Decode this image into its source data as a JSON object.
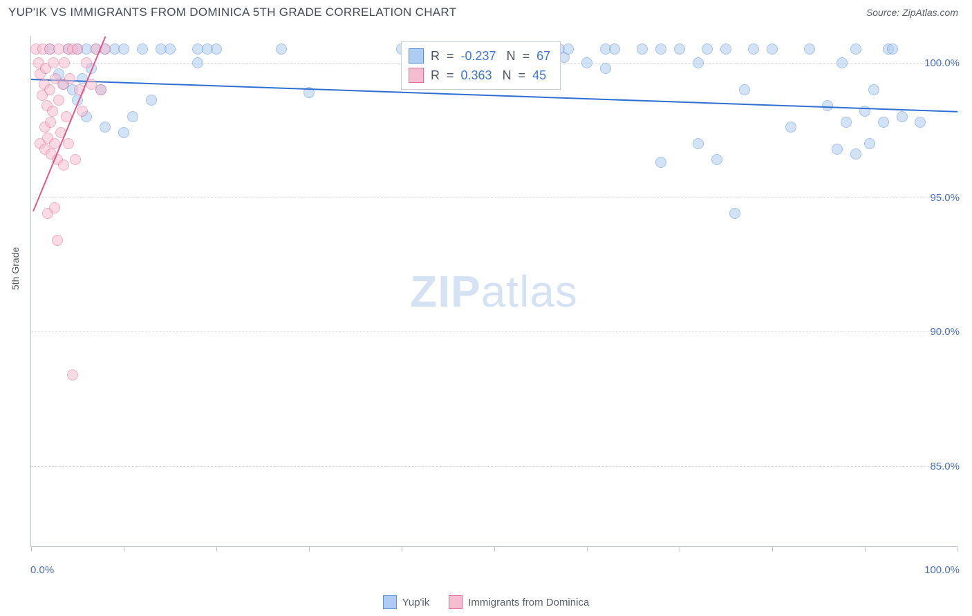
{
  "header": {
    "title": "YUP'IK VS IMMIGRANTS FROM DOMINICA 5TH GRADE CORRELATION CHART",
    "source": "Source: ZipAtlas.com"
  },
  "chart": {
    "type": "scatter",
    "ylabel": "5th Grade",
    "watermark_a": "ZIP",
    "watermark_b": "atlas",
    "xlim": [
      0,
      100
    ],
    "ylim": [
      82,
      101
    ],
    "ytick_labels": [
      "85.0%",
      "90.0%",
      "95.0%",
      "100.0%"
    ],
    "ytick_values": [
      85,
      90,
      95,
      100
    ],
    "xtick_values": [
      0,
      10,
      20,
      30,
      40,
      50,
      60,
      70,
      80,
      90,
      100
    ],
    "xtick_left_label": "0.0%",
    "xtick_right_label": "100.0%",
    "grid_color": "#d6dade",
    "axis_color": "#bfc5cc",
    "background_color": "#ffffff",
    "label_color": "#4b6fb8",
    "point_radius": 8,
    "series": [
      {
        "name": "Yup'ik",
        "fill": "#aecdf2",
        "stroke": "#5e8fd6",
        "opacity": 0.55,
        "r_value": "-0.237",
        "n_value": "67",
        "trend": {
          "x1": 0,
          "y1": 99.4,
          "x2": 100,
          "y2": 98.2,
          "color": "#2f6fd1",
          "width": 2
        },
        "points": [
          [
            2,
            100.5
          ],
          [
            3,
            99.6
          ],
          [
            3.5,
            99.2
          ],
          [
            4,
            100.5
          ],
          [
            4.5,
            99.0
          ],
          [
            5,
            100.5
          ],
          [
            5,
            98.6
          ],
          [
            5.5,
            99.4
          ],
          [
            6,
            100.5
          ],
          [
            6,
            98.0
          ],
          [
            6.5,
            99.8
          ],
          [
            7,
            100.5
          ],
          [
            7.5,
            99.0
          ],
          [
            8,
            100.5
          ],
          [
            8,
            97.6
          ],
          [
            9,
            100.5
          ],
          [
            10,
            100.5
          ],
          [
            10,
            97.4
          ],
          [
            11,
            98.0
          ],
          [
            12,
            100.5
          ],
          [
            13,
            98.6
          ],
          [
            14,
            100.5
          ],
          [
            15,
            100.5
          ],
          [
            18,
            100.5
          ],
          [
            18,
            100.0
          ],
          [
            19,
            100.5
          ],
          [
            20,
            100.5
          ],
          [
            27,
            100.5
          ],
          [
            30,
            98.9
          ],
          [
            40,
            100.5
          ],
          [
            56,
            100.5
          ],
          [
            57,
            100.5
          ],
          [
            57.5,
            100.2
          ],
          [
            58,
            100.5
          ],
          [
            60,
            100.0
          ],
          [
            62,
            100.5
          ],
          [
            62,
            99.8
          ],
          [
            63,
            100.5
          ],
          [
            66,
            100.5
          ],
          [
            68,
            100.5
          ],
          [
            68,
            96.3
          ],
          [
            70,
            100.5
          ],
          [
            72,
            100.0
          ],
          [
            72,
            97.0
          ],
          [
            73,
            100.5
          ],
          [
            74,
            96.4
          ],
          [
            75,
            100.5
          ],
          [
            76,
            94.4
          ],
          [
            77,
            99.0
          ],
          [
            78,
            100.5
          ],
          [
            80,
            100.5
          ],
          [
            82,
            97.6
          ],
          [
            84,
            100.5
          ],
          [
            86,
            98.4
          ],
          [
            87,
            96.8
          ],
          [
            87.5,
            100.0
          ],
          [
            88,
            97.8
          ],
          [
            89,
            100.5
          ],
          [
            89,
            96.6
          ],
          [
            90,
            98.2
          ],
          [
            90.5,
            97.0
          ],
          [
            91,
            99.0
          ],
          [
            92,
            97.8
          ],
          [
            92.5,
            100.5
          ],
          [
            93,
            100.5
          ],
          [
            94,
            98.0
          ],
          [
            96,
            97.8
          ]
        ]
      },
      {
        "name": "Immigrants from Dominica",
        "fill": "#f6bcd0",
        "stroke": "#e06f98",
        "opacity": 0.55,
        "r_value": "0.363",
        "n_value": "45",
        "trend": {
          "x1": 0.2,
          "y1": 94.5,
          "x2": 8,
          "y2": 101,
          "color": "#e05a89",
          "width": 2
        },
        "points": [
          [
            0.5,
            100.5
          ],
          [
            0.8,
            100.0
          ],
          [
            1.0,
            99.6
          ],
          [
            1.0,
            97.0
          ],
          [
            1.2,
            98.8
          ],
          [
            1.3,
            100.5
          ],
          [
            1.4,
            99.2
          ],
          [
            1.5,
            97.6
          ],
          [
            1.5,
            96.8
          ],
          [
            1.6,
            99.8
          ],
          [
            1.7,
            98.4
          ],
          [
            1.8,
            97.2
          ],
          [
            1.8,
            94.4
          ],
          [
            2.0,
            100.5
          ],
          [
            2.0,
            99.0
          ],
          [
            2.1,
            97.8
          ],
          [
            2.2,
            96.6
          ],
          [
            2.3,
            98.2
          ],
          [
            2.4,
            100.0
          ],
          [
            2.5,
            97.0
          ],
          [
            2.5,
            94.6
          ],
          [
            2.6,
            99.4
          ],
          [
            2.8,
            96.4
          ],
          [
            2.8,
            93.4
          ],
          [
            3.0,
            100.5
          ],
          [
            3.0,
            98.6
          ],
          [
            3.2,
            97.4
          ],
          [
            3.4,
            99.2
          ],
          [
            3.5,
            96.2
          ],
          [
            3.6,
            100.0
          ],
          [
            3.8,
            98.0
          ],
          [
            4.0,
            100.5
          ],
          [
            4.0,
            97.0
          ],
          [
            4.2,
            99.4
          ],
          [
            4.5,
            100.5
          ],
          [
            4.5,
            88.4
          ],
          [
            4.8,
            96.4
          ],
          [
            5.0,
            100.5
          ],
          [
            5.2,
            99.0
          ],
          [
            5.5,
            98.2
          ],
          [
            6.0,
            100.0
          ],
          [
            6.5,
            99.2
          ],
          [
            7.0,
            100.5
          ],
          [
            7.5,
            99.0
          ],
          [
            8.0,
            100.5
          ]
        ]
      }
    ],
    "stats_box": {
      "r_label": "R  =",
      "n_label": "N  ="
    },
    "legend": {
      "items": [
        {
          "label": "Yup'ik",
          "fill": "#aecdf2",
          "stroke": "#5e8fd6"
        },
        {
          "label": "Immigrants from Dominica",
          "fill": "#f6bcd0",
          "stroke": "#e06f98"
        }
      ]
    }
  }
}
